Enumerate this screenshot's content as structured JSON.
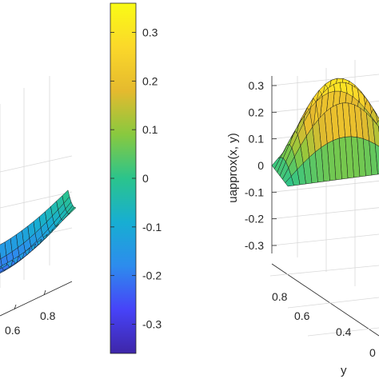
{
  "colormap": [
    "#3e26a8",
    "#4743f8",
    "#2d8ced",
    "#17aed2",
    "#2bc48c",
    "#88c93f",
    "#e5ba2e",
    "#fbd82a",
    "#f9fb15"
  ],
  "left_panel": {
    "x_tick_labels": [
      "0.6",
      "0.8"
    ]
  },
  "colorbar": {
    "range": [
      -0.36,
      0.36
    ],
    "ticks": [
      {
        "value": 0.3,
        "label": "0.3"
      },
      {
        "value": 0.2,
        "label": "0.2"
      },
      {
        "value": 0.1,
        "label": "0.1"
      },
      {
        "value": 0,
        "label": "0"
      },
      {
        "value": -0.1,
        "label": "-0.1"
      },
      {
        "value": -0.2,
        "label": "-0.2"
      },
      {
        "value": -0.3,
        "label": "-0.3"
      }
    ]
  },
  "chart_data": [
    {
      "type": "surface",
      "panel": "left",
      "x_ticks": [
        0.6,
        0.8
      ],
      "x_tick_labels": [
        "0.6",
        "0.8"
      ],
      "title": "",
      "xlabel": "",
      "ylabel": "",
      "zlabel": "",
      "grid": true
    },
    {
      "type": "colorbar",
      "range": [
        -0.36,
        0.36
      ],
      "ticks": [
        0.3,
        0.2,
        0.1,
        0,
        -0.1,
        -0.2,
        -0.3
      ]
    },
    {
      "type": "surface",
      "panel": "right",
      "zlabel": "uapprox(x, y)",
      "ylabel": "y",
      "zlim": [
        -0.3,
        0.3
      ],
      "z_ticks": [
        0.3,
        0.2,
        0.1,
        0,
        -0.1,
        -0.2,
        -0.3
      ],
      "z_tick_labels": [
        "0.3",
        "0.2",
        "0.1",
        "0",
        "-0.1",
        "-0.2",
        "-0.3"
      ],
      "y_tick_labels": [
        "0.8",
        "0.6",
        "0.4"
      ],
      "x_tick_labels": [
        "0"
      ],
      "grid": true
    }
  ]
}
